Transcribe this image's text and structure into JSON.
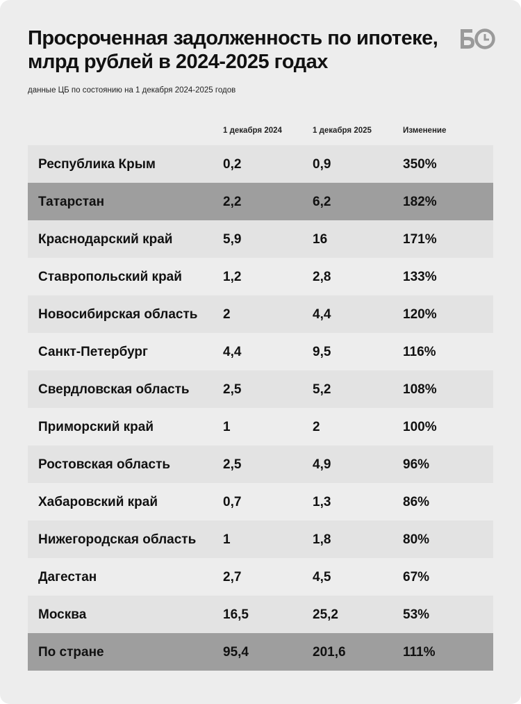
{
  "title": "Просроченная задолженность по ипотеке, млрд рублей в 2024-2025 годах",
  "subtitle": "данные ЦБ по состоянию на 1 декабря 2024-2025 годов",
  "logo": "БО",
  "colors": {
    "background": "#ededed",
    "row_shaded": "#e3e3e3",
    "row_highlight": "#9e9e9e"
  },
  "chart_data": {
    "type": "table",
    "columns": [
      "",
      "1 декабря 2024",
      "1 декабря 2025",
      "Изменение"
    ],
    "rows": [
      {
        "region": "Республика Крым",
        "v2024": "0,2",
        "v2025": "0,9",
        "change": "350%"
      },
      {
        "region": "Татарстан",
        "v2024": "2,2",
        "v2025": "6,2",
        "change": "182%",
        "highlight": true
      },
      {
        "region": "Краснодарский край",
        "v2024": "5,9",
        "v2025": "16",
        "change": "171%"
      },
      {
        "region": "Ставропольский край",
        "v2024": "1,2",
        "v2025": "2,8",
        "change": "133%"
      },
      {
        "region": "Новосибирская область",
        "v2024": "2",
        "v2025": "4,4",
        "change": "120%"
      },
      {
        "region": "Санкт-Петербург",
        "v2024": "4,4",
        "v2025": "9,5",
        "change": "116%"
      },
      {
        "region": "Свердловская область",
        "v2024": "2,5",
        "v2025": "5,2",
        "change": "108%"
      },
      {
        "region": "Приморский край",
        "v2024": "1",
        "v2025": "2",
        "change": "100%"
      },
      {
        "region": "Ростовская область",
        "v2024": "2,5",
        "v2025": "4,9",
        "change": "96%"
      },
      {
        "region": "Хабаровский край",
        "v2024": "0,7",
        "v2025": "1,3",
        "change": "86%"
      },
      {
        "region": "Нижегородская область",
        "v2024": "1",
        "v2025": "1,8",
        "change": "80%"
      },
      {
        "region": "Дагестан",
        "v2024": "2,7",
        "v2025": "4,5",
        "change": "67%"
      },
      {
        "region": "Москва",
        "v2024": "16,5",
        "v2025": "25,2",
        "change": "53%"
      },
      {
        "region": "По стране",
        "v2024": "95,4",
        "v2025": "201,6",
        "change": "111%",
        "highlight": true
      }
    ]
  }
}
